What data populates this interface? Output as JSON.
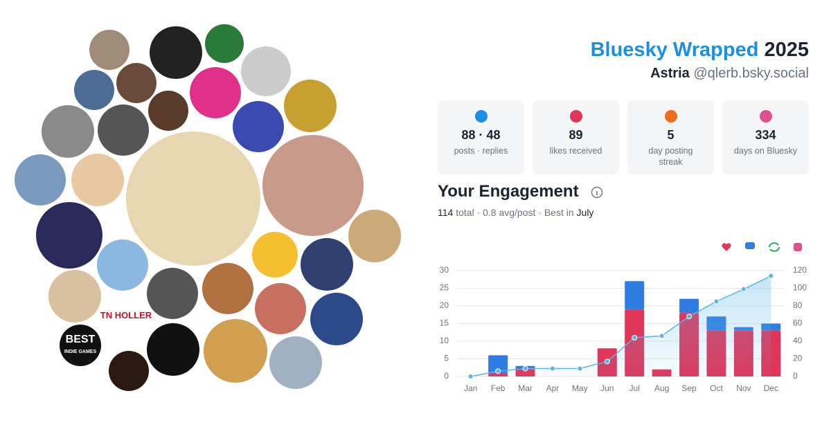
{
  "header": {
    "title": "Bluesky Wrapped",
    "year": "2025",
    "name": "Astria",
    "handle": "@qlerb.bsky.social"
  },
  "stats": [
    {
      "value": "88 · 48",
      "label": "posts · replies",
      "color": "#1a8fe3"
    },
    {
      "value": "89",
      "label": "likes received",
      "color": "#e0365a"
    },
    {
      "value": "5",
      "label": "day posting streak",
      "color": "#f26b1d"
    },
    {
      "value": "334",
      "label": "days on Bluesky",
      "color": "#e0508f"
    }
  ],
  "engagement": {
    "title": "Your Engagement",
    "total": "114",
    "summary": "total · 0.8 avg/post · Best in",
    "best": "July"
  },
  "avatars": {
    "labels": [
      "TN HOLLER",
      "BEST",
      "INDIE GAMES"
    ]
  },
  "chart_data": {
    "type": "bar",
    "stacked": true,
    "categories": [
      "Jan",
      "Feb",
      "Mar",
      "Apr",
      "May",
      "Jun",
      "Jul",
      "Aug",
      "Sep",
      "Oct",
      "Nov",
      "Dec"
    ],
    "series": [
      {
        "color": "#e0365a",
        "values": [
          0,
          1,
          2,
          0,
          0,
          8,
          19,
          2,
          18,
          13,
          13,
          13
        ]
      },
      {
        "color": "#2f7de1",
        "values": [
          0,
          5,
          1,
          0,
          0,
          0,
          8,
          0,
          4,
          4,
          1,
          2
        ]
      },
      {
        "color": "#5ab4e8",
        "type": "line",
        "axis": "y2",
        "area": true,
        "values": [
          0,
          6,
          9,
          9,
          9,
          17,
          44,
          46,
          68,
          85,
          99,
          114
        ]
      }
    ],
    "ylim": [
      0,
      30
    ],
    "yticks": [
      0,
      5,
      10,
      15,
      20,
      25,
      30
    ],
    "y2lim": [
      0,
      120
    ],
    "y2ticks": [
      0,
      20,
      40,
      60,
      80,
      100,
      120
    ],
    "grid": true
  }
}
